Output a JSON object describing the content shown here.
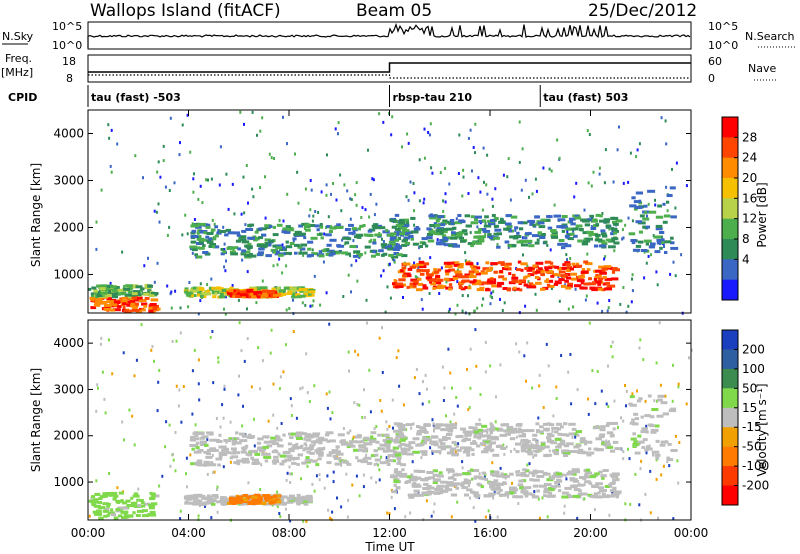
{
  "header": {
    "station": "Wallops Island (fitACF)",
    "beam": "Beam 05",
    "date": "25/Dec/2012"
  },
  "top_panels": {
    "nsky_label": "N.Sky",
    "nsky_ticks": [
      "10^5",
      "10^0"
    ],
    "nsearch_label": "N.Search",
    "nsearch_ticks": [
      "10^5",
      "10^0"
    ],
    "freq_label": "Freq.",
    "freq_unit": "[MHz]",
    "freq_ticks": [
      "18",
      "8"
    ],
    "nave_label": "Nave",
    "nave_ticks": [
      "60",
      "0"
    ],
    "cpid_label": "CPID",
    "cpid_segments": [
      {
        "label": "tau (fast) -503",
        "start_hour": 0
      },
      {
        "label": "rbsp-tau 210",
        "start_hour": 12
      },
      {
        "label": "tau (fast) 503",
        "start_hour": 18
      }
    ]
  },
  "chart_data": [
    {
      "type": "heatmap",
      "name": "power",
      "ylabel": "Slant Range [km]",
      "xlabel": "",
      "ylim": [
        180,
        4500
      ],
      "yticks": [
        1000,
        2000,
        3000,
        4000
      ],
      "x_range_hours": [
        0,
        24
      ],
      "colorbar": {
        "label": "Power [dB]",
        "ticks": [
          "28",
          "24",
          "20",
          "16",
          "12",
          "8",
          "4"
        ],
        "colors": [
          "#ff0000",
          "#ff4500",
          "#ff8c00",
          "#f5c000",
          "#b8d24a",
          "#4cae4c",
          "#2e8b57",
          "#3a66c4",
          "#1a1aff"
        ]
      },
      "regions": [
        {
          "t0": 0.0,
          "t1": 2.6,
          "r0": 250,
          "r1": 550,
          "level": 28
        },
        {
          "t0": 0.0,
          "t1": 2.6,
          "r0": 550,
          "r1": 800,
          "level": 14
        },
        {
          "t0": 3.8,
          "t1": 8.8,
          "r0": 550,
          "r1": 750,
          "level": 16
        },
        {
          "t0": 5.5,
          "t1": 7.5,
          "r0": 550,
          "r1": 700,
          "level": 26
        },
        {
          "t0": 4.0,
          "t1": 12.5,
          "r0": 1400,
          "r1": 2100,
          "level": 10
        },
        {
          "t0": 12.0,
          "t1": 21.0,
          "r0": 700,
          "r1": 1300,
          "level": 26
        },
        {
          "t0": 12.0,
          "t1": 21.0,
          "r0": 1600,
          "r1": 2300,
          "level": 8
        },
        {
          "t0": 21.5,
          "t1": 23.2,
          "r0": 1500,
          "r1": 2900,
          "level": 8
        }
      ]
    },
    {
      "type": "heatmap",
      "name": "velocity",
      "ylabel": "Slant Range [km]",
      "xlabel": "Time UT",
      "ylim": [
        180,
        4500
      ],
      "yticks": [
        1000,
        2000,
        3000,
        4000
      ],
      "x_range_hours": [
        0,
        24
      ],
      "xticks": [
        "00:00",
        "04:00",
        "08:00",
        "12:00",
        "16:00",
        "20:00",
        "00:00"
      ],
      "colorbar": {
        "label": "Velocity [m s⁻¹]",
        "ticks": [
          "200",
          "100",
          "50",
          "15",
          "-15",
          "-50",
          "-100",
          "-200"
        ],
        "colors": [
          "#1a3fbf",
          "#2e5fa0",
          "#3c8c50",
          "#7fd94a",
          "#bdbdbd",
          "#f0a000",
          "#ff7a00",
          "#ff3a00",
          "#ff0000"
        ]
      },
      "regions": [
        {
          "t0": 0.0,
          "t1": 2.6,
          "r0": 250,
          "r1": 800,
          "level": 40
        },
        {
          "t0": 3.8,
          "t1": 8.8,
          "r0": 550,
          "r1": 750,
          "level": 0
        },
        {
          "t0": 5.5,
          "t1": 7.5,
          "r0": 550,
          "r1": 750,
          "level": -30
        },
        {
          "t0": 4.0,
          "t1": 12.5,
          "r0": 1400,
          "r1": 2100,
          "level": 0
        },
        {
          "t0": 12.0,
          "t1": 21.0,
          "r0": 700,
          "r1": 1300,
          "level": 0
        },
        {
          "t0": 12.0,
          "t1": 21.0,
          "r0": 1600,
          "r1": 2300,
          "level": 0
        },
        {
          "t0": 21.5,
          "t1": 23.2,
          "r0": 1500,
          "r1": 2900,
          "level": 0
        }
      ]
    }
  ]
}
